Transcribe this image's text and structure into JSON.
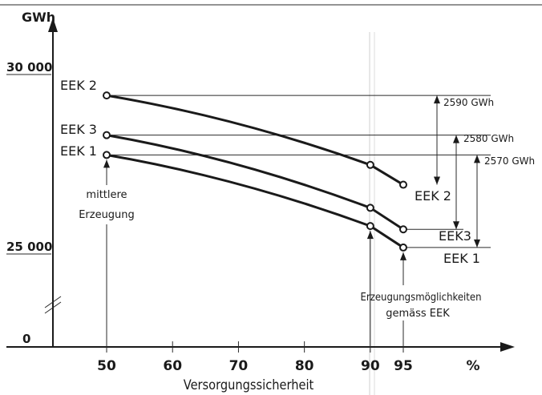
{
  "chart_data": {
    "type": "line",
    "ylabel": "GWh",
    "xlabel": "Versorgungssicherheit",
    "x_unit": "%",
    "x_ticks": [
      50,
      60,
      70,
      80,
      90,
      95
    ],
    "y_ticks": [
      "0",
      "25 000",
      "30 000"
    ],
    "axis_break": true,
    "series": [
      {
        "name": "EEK 2",
        "x": [
          50,
          90,
          95
        ],
        "y": [
          29650,
          27550,
          26950
        ]
      },
      {
        "name": "EEK 3",
        "x": [
          50,
          90,
          95
        ],
        "y": [
          28450,
          26250,
          25600
        ]
      },
      {
        "name": "EEK 1",
        "x": [
          50,
          90,
          95
        ],
        "y": [
          27850,
          25700,
          25050
        ]
      }
    ],
    "differences": [
      {
        "label": "2590 GWh",
        "series": "EEK 2"
      },
      {
        "label": "2580 GWh",
        "series": "EEK 3"
      },
      {
        "label": "2570 GWh",
        "series": "EEK 1"
      }
    ],
    "annotations": {
      "mean_production": [
        "mittlere",
        "Erzeugung"
      ],
      "production_possibilities": [
        "Erzeugungsmöglichkeiten",
        "gemäss EEK"
      ]
    },
    "colors": {
      "ink": "#1a1a1a",
      "background": "#ffffff"
    }
  }
}
